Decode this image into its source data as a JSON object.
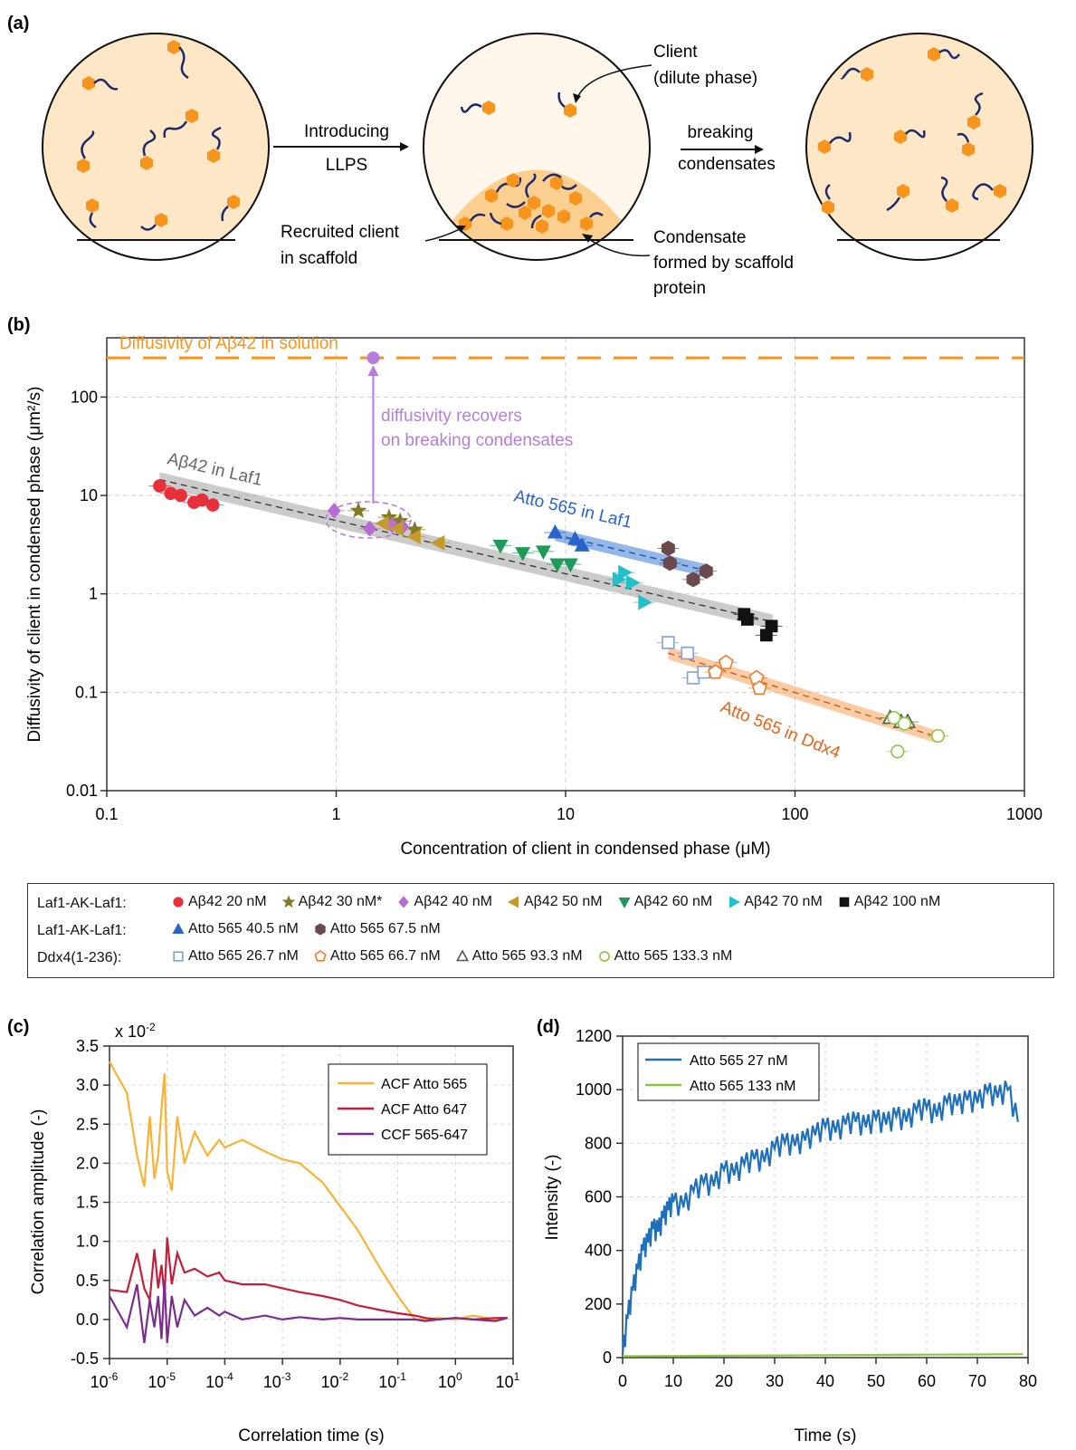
{
  "panel_labels": {
    "a": "(a)",
    "b": "(b)",
    "c": "(c)",
    "d": "(d)"
  },
  "colors": {
    "orange": "#f7941d",
    "navy": "#1f2a6b",
    "droplet": "#fde7c7",
    "dilute": "#fff6ec",
    "purple": "#b57edc"
  },
  "schematic": {
    "label_introducing": "Introducing",
    "label_llps": "LLPS",
    "label_breaking_1": "breaking",
    "label_breaking_2": "condensates",
    "label_client_1": "Client",
    "label_client_2": "(dilute phase)",
    "label_recruited_1": "Recruited client",
    "label_recruited_2": "in scaffold",
    "label_condensate_1": "Condensate",
    "label_condensate_2": "formed by scaffold",
    "label_condensate_3": "protein"
  },
  "chart_data": [
    {
      "panel": "b",
      "type": "scatter",
      "xscale": "log",
      "yscale": "log",
      "xlim": [
        0.1,
        1000
      ],
      "ylim": [
        0.01,
        400
      ],
      "xticks": [
        "0.1",
        "1",
        "10",
        "100",
        "1000"
      ],
      "yticks": [
        "0.01",
        "0.1",
        "1",
        "10",
        "100"
      ],
      "xlabel": "Concentration of client in condensed phase (μM)",
      "ylabel": "Diffusivity of client in condensed phase (μm²/s)",
      "grid": true,
      "hline": {
        "y": 250,
        "label": "Diffusivity of Aβ42 in solution",
        "color": "#f7941d"
      },
      "annotations": {
        "recovery_1": "diffusivity recovers",
        "recovery_2": "on breaking condensates",
        "aB42_laf1": "Aβ42 in Laf1",
        "atto_laf1": "Atto 565 in Laf1",
        "atto_ddx4": "Atto 565 in Ddx4"
      },
      "recovery_point": {
        "x": 1.45,
        "y": 250
      },
      "fits": [
        {
          "name": "Aβ42 in Laf1",
          "x": [
            0.17,
            80
          ],
          "y": [
            14.5,
            0.52
          ],
          "color": "#a0a0a0"
        },
        {
          "name": "Atto 565 in Laf1",
          "x": [
            9,
            42
          ],
          "y": [
            4.0,
            1.7
          ],
          "color": "#3a7bd5"
        },
        {
          "name": "Atto 565 in Ddx4",
          "x": [
            28,
            420
          ],
          "y": [
            0.25,
            0.035
          ],
          "color": "#f7a25a"
        }
      ],
      "legend": {
        "rows": [
          {
            "group": "Laf1-AK-Laf1:",
            "items": [
              {
                "label": "Aβ42 20 nM",
                "marker": "circle",
                "color": "#e8303a",
                "filled": true
              },
              {
                "label": "Aβ42 30 nM*",
                "marker": "star",
                "color": "#7f7a24",
                "filled": true
              },
              {
                "label": "Aβ42 40 nM",
                "marker": "diamond",
                "color": "#b86bd3",
                "filled": true
              },
              {
                "label": "Aβ42 50 nM",
                "marker": "triangle-left",
                "color": "#c59a2c",
                "filled": true
              },
              {
                "label": "Aβ42 60 nM",
                "marker": "triangle-down",
                "color": "#1f9a5a",
                "filled": true
              },
              {
                "label": "Aβ42 70 nM",
                "marker": "triangle-right",
                "color": "#23c0c8",
                "filled": true
              },
              {
                "label": "Aβ42 100 nM",
                "marker": "square",
                "color": "#111111",
                "filled": true
              }
            ]
          },
          {
            "group": "Laf1-AK-Laf1:",
            "items": [
              {
                "label": "Atto 565 40.5 nM",
                "marker": "triangle-up",
                "color": "#2a64c8",
                "filled": true
              },
              {
                "label": "Atto 565 67.5 nM",
                "marker": "hexagon",
                "color": "#6b4a4f",
                "filled": true
              }
            ]
          },
          {
            "group": "Ddx4(1-236):",
            "items": [
              {
                "label": "Atto 565 26.7 nM",
                "marker": "square",
                "color": "#7ea2d6",
                "filled": false
              },
              {
                "label": "Atto 565 66.7 nM",
                "marker": "pentagon",
                "color": "#f07a2a",
                "filled": false
              },
              {
                "label": "Atto 565 93.3 nM",
                "marker": "triangle-up",
                "color": "#555555",
                "filled": false
              },
              {
                "label": "Atto 565 133.3 nM",
                "marker": "circle",
                "color": "#8cc63f",
                "filled": false
              }
            ]
          }
        ]
      },
      "series": [
        {
          "name": "Aβ42 20 nM",
          "points": [
            [
              0.17,
              12.5
            ],
            [
              0.19,
              10.5
            ],
            [
              0.21,
              10.0
            ],
            [
              0.24,
              8.5
            ],
            [
              0.26,
              9.0
            ],
            [
              0.29,
              8.0
            ]
          ]
        },
        {
          "name": "Aβ42 30 nM*",
          "points": [
            [
              1.25,
              7.0
            ],
            [
              1.7,
              6.0
            ],
            [
              1.9,
              5.5
            ],
            [
              2.2,
              4.5
            ]
          ]
        },
        {
          "name": "Aβ42 40 nM",
          "points": [
            [
              0.98,
              7.0
            ],
            [
              1.4,
              4.6
            ],
            [
              1.75,
              5.0
            ],
            [
              1.95,
              4.8
            ]
          ]
        },
        {
          "name": "Aβ42 50 nM",
          "points": [
            [
              1.6,
              5.2
            ],
            [
              1.85,
              4.6
            ],
            [
              2.2,
              3.8
            ],
            [
              2.8,
              3.3
            ]
          ]
        },
        {
          "name": "Aβ42 60 nM",
          "points": [
            [
              5.2,
              3.1
            ],
            [
              6.5,
              2.6
            ],
            [
              8.0,
              2.7
            ],
            [
              9.2,
              2.0
            ],
            [
              10.5,
              2.0
            ]
          ]
        },
        {
          "name": "Aβ42 70 nM",
          "points": [
            [
              17,
              1.4
            ],
            [
              18,
              1.65
            ],
            [
              19.5,
              1.3
            ],
            [
              22,
              0.82
            ]
          ]
        },
        {
          "name": "Aβ42 100 nM",
          "points": [
            [
              60,
              0.62
            ],
            [
              62,
              0.55
            ],
            [
              75,
              0.38
            ],
            [
              79,
              0.47
            ]
          ]
        },
        {
          "name": "Atto 565 40.5 nM",
          "points": [
            [
              9.0,
              4.2
            ],
            [
              11.0,
              3.6
            ],
            [
              11.8,
              3.1
            ]
          ]
        },
        {
          "name": "Atto 565 67.5 nM",
          "points": [
            [
              28,
              2.9
            ],
            [
              28.5,
              2.05
            ],
            [
              36,
              1.4
            ],
            [
              41,
              1.7
            ]
          ]
        },
        {
          "name": "Atto 565 26.7 nM",
          "points": [
            [
              28,
              0.32
            ],
            [
              34,
              0.25
            ],
            [
              36,
              0.14
            ],
            [
              40,
              0.16
            ]
          ]
        },
        {
          "name": "Atto 565 66.7 nM",
          "points": [
            [
              45,
              0.16
            ],
            [
              50,
              0.2
            ],
            [
              68,
              0.14
            ],
            [
              70,
              0.11
            ]
          ]
        },
        {
          "name": "Atto 565 93.3 nM",
          "points": [
            [
              260,
              0.055
            ],
            [
              290,
              0.05
            ],
            [
              310,
              0.05
            ]
          ]
        },
        {
          "name": "Atto 565 133.3 nM",
          "points": [
            [
              270,
              0.055
            ],
            [
              280,
              0.025
            ],
            [
              300,
              0.048
            ],
            [
              420,
              0.036
            ]
          ]
        }
      ]
    },
    {
      "panel": "c",
      "type": "line",
      "xscale": "log",
      "xlim": [
        1e-06,
        10
      ],
      "ylim": [
        -0.5,
        3.5
      ],
      "xticks": [
        "10",
        "10",
        "10",
        "10",
        "10",
        "10",
        "10",
        "10"
      ],
      "xtick_exponents": [
        "-6",
        "-5",
        "-4",
        "-3",
        "-2",
        "-1",
        "0",
        "1"
      ],
      "yticks": [
        "-0.5",
        "0.0",
        "0.5",
        "1.0",
        "1.5",
        "2.0",
        "2.5",
        "3.0",
        "3.5"
      ],
      "y_multiplier": "x 10",
      "y_multiplier_exp": "-2",
      "xlabel": "Correlation time (s)",
      "ylabel": "Correlation amplitude (-)",
      "grid": true,
      "legend_position": "top-right",
      "series": [
        {
          "name": "ACF Atto 565",
          "color": "#f9b233",
          "x": [
            1e-06,
            2e-06,
            3e-06,
            4e-06,
            5e-06,
            6e-06,
            7e-06,
            8e-06,
            9e-06,
            1e-05,
            1.2e-05,
            1.5e-05,
            2e-05,
            3e-05,
            5e-05,
            8e-05,
            0.0001,
            0.0002,
            0.0005,
            0.001,
            0.002,
            0.005,
            0.01,
            0.02,
            0.05,
            0.1,
            0.2,
            0.3,
            0.5,
            1,
            2,
            5,
            8
          ],
          "y": [
            3.3,
            2.9,
            2.1,
            1.7,
            2.6,
            1.8,
            2.1,
            2.7,
            3.15,
            1.9,
            1.65,
            2.6,
            2.0,
            2.4,
            2.1,
            2.3,
            2.2,
            2.3,
            2.15,
            2.05,
            2.0,
            1.75,
            1.45,
            1.15,
            0.65,
            0.3,
            0.0,
            0.0,
            0.02,
            0.0,
            0.05,
            0.0,
            0.02
          ]
        },
        {
          "name": "ACF Atto 647",
          "color": "#c41e3a",
          "x": [
            1e-06,
            2e-06,
            3e-06,
            4e-06,
            5e-06,
            6e-06,
            7e-06,
            8e-06,
            9e-06,
            1e-05,
            1.2e-05,
            1.5e-05,
            2e-05,
            3e-05,
            5e-05,
            8e-05,
            0.0001,
            0.0002,
            0.0005,
            0.001,
            0.002,
            0.005,
            0.01,
            0.02,
            0.05,
            0.1,
            0.2,
            0.3,
            0.5,
            1,
            2,
            5,
            8
          ],
          "y": [
            0.38,
            0.35,
            0.85,
            0.4,
            0.25,
            0.9,
            0.4,
            0.7,
            0.3,
            1.05,
            0.45,
            0.85,
            0.6,
            0.65,
            0.55,
            0.6,
            0.5,
            0.45,
            0.45,
            0.4,
            0.35,
            0.3,
            0.25,
            0.18,
            0.12,
            0.08,
            0.05,
            0.02,
            0.0,
            0.02,
            0.0,
            0.02,
            0.02
          ]
        },
        {
          "name": "CCF 565-647",
          "color": "#7b2d8e",
          "x": [
            1e-06,
            2e-06,
            3e-06,
            4e-06,
            5e-06,
            6e-06,
            7e-06,
            8e-06,
            9e-06,
            1e-05,
            1.2e-05,
            1.5e-05,
            2e-05,
            3e-05,
            5e-05,
            8e-05,
            0.0001,
            0.0002,
            0.0005,
            0.001,
            0.002,
            0.005,
            0.01,
            0.02,
            0.05,
            0.1,
            0.2,
            0.3,
            0.5,
            1,
            2,
            5,
            8
          ],
          "y": [
            0.3,
            -0.1,
            0.45,
            -0.3,
            0.25,
            -0.1,
            0.3,
            -0.25,
            0.5,
            -0.3,
            0.3,
            -0.1,
            0.25,
            0.05,
            0.15,
            0.05,
            0.1,
            0.0,
            0.05,
            0.0,
            0.03,
            0.0,
            0.02,
            0.0,
            0.0,
            0.0,
            0.0,
            -0.02,
            0.0,
            0.02,
            0.0,
            -0.02,
            0.02
          ]
        }
      ]
    },
    {
      "panel": "d",
      "type": "line",
      "xlim": [
        0,
        80
      ],
      "ylim": [
        0,
        1200
      ],
      "xticks": [
        "0",
        "10",
        "20",
        "30",
        "40",
        "50",
        "60",
        "70",
        "80"
      ],
      "yticks": [
        "0",
        "200",
        "400",
        "600",
        "800",
        "1000",
        "1200"
      ],
      "xlabel": "Time (s)",
      "ylabel": "Intensity (-)",
      "grid": true,
      "legend_position": "top-left",
      "series": [
        {
          "name": "Atto 565 27 nM",
          "color": "#1f6fba",
          "x": [
            0,
            1,
            2,
            3,
            4,
            5,
            6,
            7,
            8,
            9,
            10,
            12,
            14,
            16,
            18,
            20,
            22,
            24,
            26,
            28,
            30,
            32,
            34,
            36,
            38,
            40,
            42,
            44,
            46,
            48,
            50,
            52,
            54,
            56,
            58,
            60,
            62,
            64,
            66,
            68,
            70,
            72,
            74,
            76,
            78
          ],
          "y": [
            10,
            150,
            250,
            330,
            400,
            430,
            480,
            470,
            520,
            550,
            580,
            560,
            620,
            650,
            640,
            700,
            680,
            720,
            740,
            730,
            780,
            800,
            790,
            810,
            830,
            860,
            840,
            870,
            880,
            860,
            890,
            870,
            900,
            880,
            920,
            930,
            900,
            950,
            940,
            960,
            950,
            990,
            970,
            1000,
            880
          ]
        },
        {
          "name": "Atto 565 133 nM",
          "color": "#8cc63f",
          "x": [
            0,
            10,
            20,
            30,
            40,
            50,
            60,
            70,
            79
          ],
          "y": [
            5,
            6,
            7,
            8,
            9,
            10,
            11,
            12,
            13
          ]
        }
      ]
    }
  ]
}
